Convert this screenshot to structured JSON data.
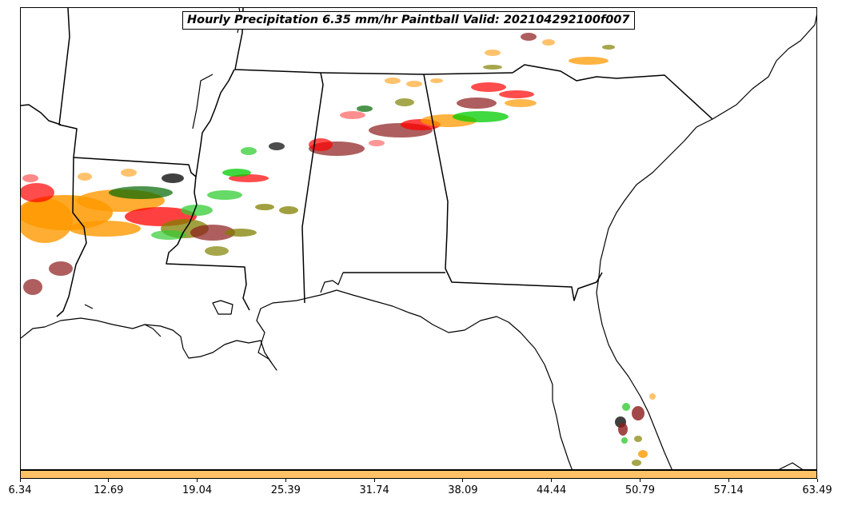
{
  "map": {
    "title": "Hourly Precipitation 6.35 mm/hr Paintball Valid: 202104292100f007",
    "region": "Southeastern United States",
    "product": "Paintball",
    "threshold_mm_hr": 6.35,
    "valid": "202104292100f007",
    "member_colors": [
      "#ff9900",
      "#ff0000",
      "#00cc00",
      "#006600",
      "#808000",
      "#8b1a1a",
      "#000000",
      "#ffb347",
      "#ff6a6a",
      "#33cc33"
    ],
    "background_color": "#ffffff",
    "boundary_color": "#000000"
  },
  "colorbar": {
    "fill_color": "#ffc266",
    "ticks": [
      "6.34",
      "12.69",
      "19.04",
      "25.39",
      "31.74",
      "38.09",
      "44.44",
      "50.79",
      "57.14",
      "63.49"
    ]
  }
}
